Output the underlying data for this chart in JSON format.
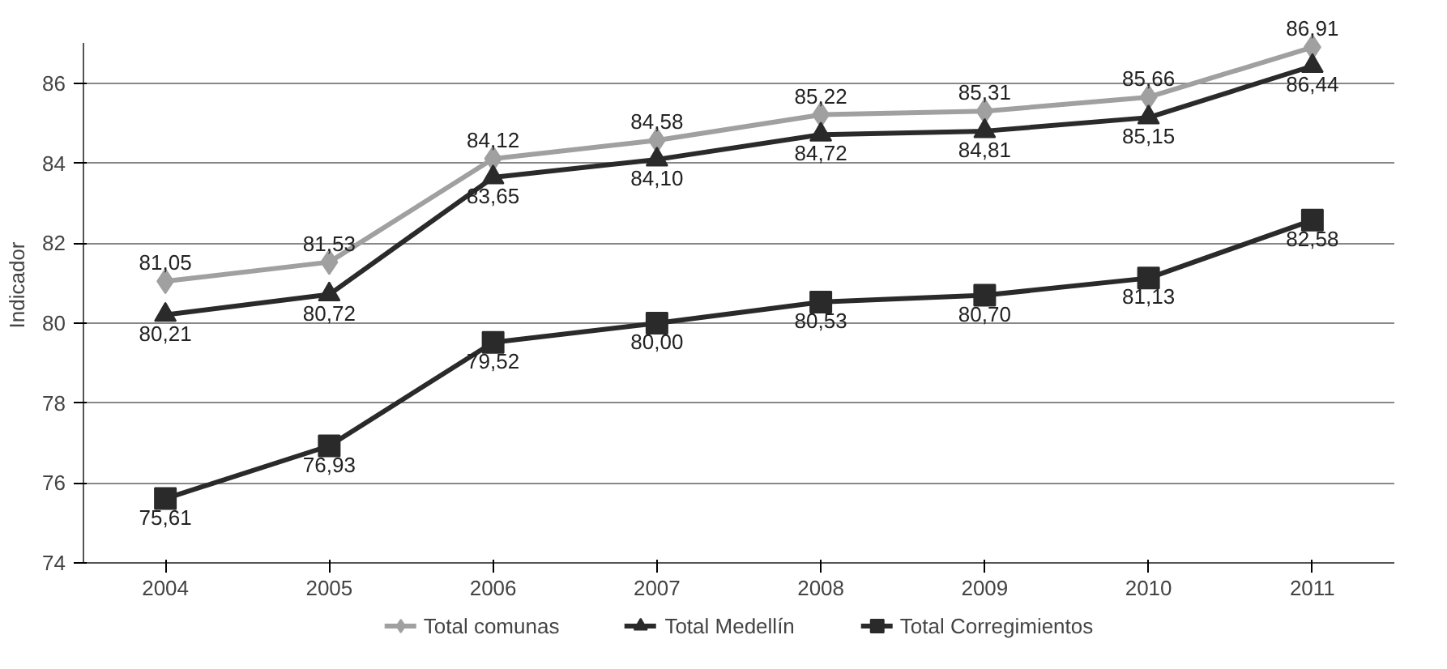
{
  "chart_data": {
    "type": "line",
    "ylabel": "Indicador",
    "categories": [
      "2004",
      "2005",
      "2006",
      "2007",
      "2008",
      "2009",
      "2010",
      "2011"
    ],
    "series": [
      {
        "name": "Total comunas",
        "color": "#a0a0a0",
        "marker": "diamond",
        "values": [
          81.05,
          81.53,
          84.12,
          84.58,
          85.22,
          85.31,
          85.66,
          86.91
        ],
        "value_labels": [
          "81,05",
          "81,53",
          "84,12",
          "84,58",
          "85,22",
          "85,31",
          "85,66",
          "86,91"
        ]
      },
      {
        "name": "Total Medellín",
        "color": "#2a2a2a",
        "marker": "triangle",
        "values": [
          80.21,
          80.72,
          83.65,
          84.1,
          84.72,
          84.81,
          85.15,
          86.44
        ],
        "value_labels": [
          "80,21",
          "80,72",
          "83,65",
          "84,10",
          "84,72",
          "84,81",
          "85,15",
          "86,44"
        ]
      },
      {
        "name": "Total Corregimientos",
        "color": "#2a2a2a",
        "marker": "square",
        "values": [
          75.61,
          76.93,
          79.52,
          80.0,
          80.53,
          80.7,
          81.13,
          82.58
        ],
        "value_labels": [
          "75,61",
          "76,93",
          "79,52",
          "80,00",
          "80,53",
          "80,70",
          "81,13",
          "82,58"
        ]
      }
    ],
    "ylim": [
      74,
      87
    ],
    "yticks": [
      74,
      76,
      78,
      80,
      82,
      84,
      86
    ],
    "grid": "y",
    "legend": "bottom",
    "line_style": "solid"
  }
}
